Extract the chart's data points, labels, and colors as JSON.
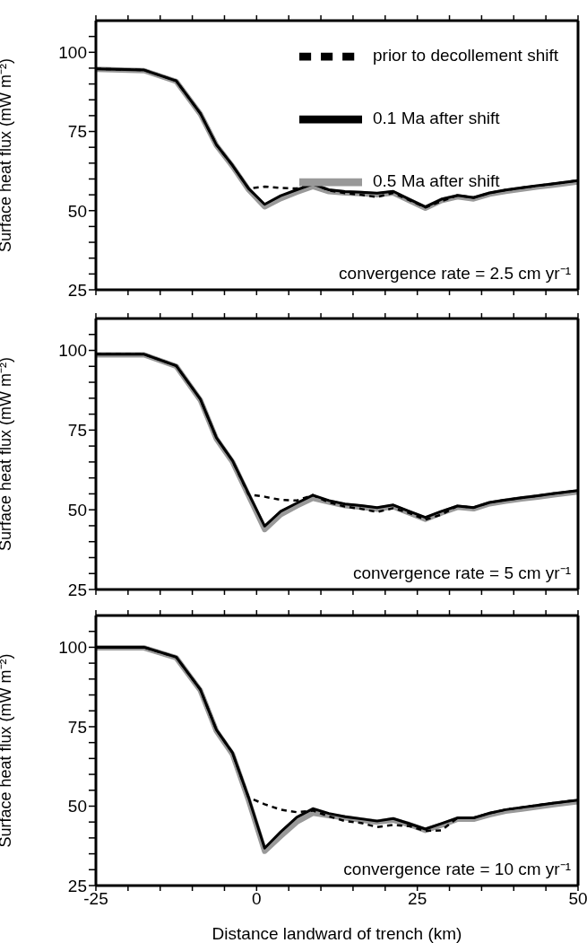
{
  "chart_data": [
    {
      "type": "line",
      "ylabel": "Surface heat flux (mW m⁻²)",
      "xlim": [
        -25,
        50
      ],
      "ylim": [
        25,
        110
      ],
      "xticks": [
        -25,
        {
          "value": -20,
          "label": null
        },
        {
          "value": -15,
          "label": null
        },
        {
          "value": -10,
          "label": null
        },
        {
          "value": -5,
          "label": null
        },
        0,
        {
          "value": 5,
          "label": null
        },
        {
          "value": 10,
          "label": null
        },
        {
          "value": 15,
          "label": null
        },
        {
          "value": 20,
          "label": null
        },
        25,
        {
          "value": 30,
          "label": null
        },
        {
          "value": 35,
          "label": null
        },
        {
          "value": 40,
          "label": null
        },
        {
          "value": 45,
          "label": null
        },
        50
      ],
      "yticks": [
        25,
        {
          "value": 30,
          "label": null
        },
        {
          "value": 35,
          "label": null
        },
        {
          "value": 40,
          "label": null
        },
        {
          "value": 45,
          "label": null
        },
        50,
        {
          "value": 55,
          "label": null
        },
        {
          "value": 60,
          "label": null
        },
        {
          "value": 65,
          "label": null
        },
        {
          "value": 70,
          "label": null
        },
        75,
        {
          "value": 80,
          "label": null
        },
        {
          "value": 85,
          "label": null
        },
        {
          "value": 90,
          "label": null
        },
        {
          "value": 95,
          "label": null
        },
        100,
        {
          "value": 105,
          "label": null
        }
      ],
      "tick_labels": "y",
      "legend": "top right",
      "annotations": [
        "convergence rate = 2.5 cm yr⁻¹"
      ],
      "x": [
        -25,
        -17.5,
        -12.5,
        -8.75,
        -6.25,
        -3.75,
        -1.25,
        1.25,
        3.75,
        6.25,
        8.75,
        11.25,
        13.75,
        16.25,
        18.75,
        21.25,
        23.75,
        26.25,
        28.75,
        31.25,
        33.75,
        36.25,
        38.75,
        41.25,
        43.75,
        46.25,
        50
      ],
      "series": [
        {
          "name": "prior to decollement shift",
          "color": "#000000",
          "line_style": "dashed",
          "values": [
            94.8,
            94.4,
            91.0,
            80.7,
            70.8,
            64.3,
            57.0,
            57.6,
            57.2,
            57.0,
            58.4,
            56.4,
            55.5,
            55.0,
            54.3,
            55.6,
            53.3,
            51.0,
            53.0,
            54.8,
            54.1,
            55.6,
            56.5,
            57.2,
            57.9,
            58.5,
            59.5
          ]
        },
        {
          "name": "0.1 Ma after shift",
          "color": "#000000",
          "values": [
            94.8,
            94.4,
            91.0,
            80.7,
            70.8,
            64.3,
            57.0,
            52.0,
            54.7,
            56.6,
            58.4,
            56.6,
            56.0,
            55.8,
            55.5,
            56.1,
            53.6,
            51.2,
            53.6,
            54.8,
            54.1,
            55.6,
            56.5,
            57.2,
            57.9,
            58.5,
            59.5
          ]
        },
        {
          "name": "0.5 Ma after shift",
          "color": "#999999",
          "values": [
            94.6,
            94.2,
            90.8,
            80.5,
            70.6,
            64.0,
            56.6,
            51.2,
            53.8,
            55.8,
            57.6,
            56.0,
            55.6,
            55.4,
            55.0,
            55.6,
            53.2,
            50.8,
            53.2,
            54.4,
            53.7,
            55.2,
            56.1,
            56.8,
            57.5,
            58.1,
            59.1
          ]
        }
      ]
    },
    {
      "type": "line",
      "ylabel": "Surface heat flux (mW m⁻²)",
      "xlim": [
        -25,
        50
      ],
      "ylim": [
        25,
        110
      ],
      "xticks": [
        -25,
        {
          "value": -20,
          "label": null
        },
        {
          "value": -15,
          "label": null
        },
        {
          "value": -10,
          "label": null
        },
        {
          "value": -5,
          "label": null
        },
        0,
        {
          "value": 5,
          "label": null
        },
        {
          "value": 10,
          "label": null
        },
        {
          "value": 15,
          "label": null
        },
        {
          "value": 20,
          "label": null
        },
        25,
        {
          "value": 30,
          "label": null
        },
        {
          "value": 35,
          "label": null
        },
        {
          "value": 40,
          "label": null
        },
        {
          "value": 45,
          "label": null
        },
        50
      ],
      "yticks": [
        25,
        {
          "value": 30,
          "label": null
        },
        {
          "value": 35,
          "label": null
        },
        {
          "value": 40,
          "label": null
        },
        {
          "value": 45,
          "label": null
        },
        50,
        {
          "value": 55,
          "label": null
        },
        {
          "value": 60,
          "label": null
        },
        {
          "value": 65,
          "label": null
        },
        {
          "value": 70,
          "label": null
        },
        75,
        {
          "value": 80,
          "label": null
        },
        {
          "value": 85,
          "label": null
        },
        {
          "value": 90,
          "label": null
        },
        {
          "value": 95,
          "label": null
        },
        100,
        {
          "value": 105,
          "label": null
        }
      ],
      "tick_labels": "y",
      "annotations": [
        "convergence rate = 5 cm yr⁻¹"
      ],
      "x": [
        -25,
        -17.5,
        -12.5,
        -8.75,
        -6.25,
        -3.75,
        -1.25,
        1.25,
        3.75,
        6.25,
        8.75,
        11.25,
        13.75,
        16.25,
        18.75,
        21.25,
        23.75,
        26.25,
        28.75,
        31.25,
        33.75,
        36.25,
        38.75,
        41.25,
        43.75,
        46.25,
        50
      ],
      "series": [
        {
          "color": "#000000",
          "line_style": "dashed",
          "values": [
            98.8,
            98.8,
            95.2,
            84.7,
            72.6,
            65.4,
            54.8,
            54.1,
            53.1,
            52.9,
            54.6,
            52.3,
            51.0,
            50.3,
            49.3,
            50.5,
            49.0,
            46.9,
            48.5,
            51.2,
            50.7,
            52.3,
            53.1,
            53.8,
            54.4,
            55.1,
            56.0
          ]
        },
        {
          "color": "#000000",
          "values": [
            98.8,
            98.8,
            95.2,
            84.7,
            72.6,
            65.4,
            55.1,
            44.9,
            49.5,
            52.1,
            54.6,
            52.9,
            51.8,
            51.3,
            50.7,
            51.5,
            49.5,
            47.6,
            49.5,
            51.2,
            50.7,
            52.3,
            53.1,
            53.8,
            54.4,
            55.1,
            56.0
          ]
        },
        {
          "color": "#999999",
          "values": [
            98.6,
            98.6,
            95.0,
            84.4,
            72.2,
            65.0,
            54.4,
            43.8,
            48.5,
            51.2,
            53.6,
            52.4,
            51.3,
            50.8,
            50.2,
            51.0,
            49.0,
            47.0,
            49.0,
            50.8,
            50.3,
            51.9,
            52.7,
            53.4,
            54.0,
            54.7,
            55.6
          ]
        }
      ]
    },
    {
      "type": "line",
      "ylabel": "Surface heat flux (mW m⁻²)",
      "xlabel": "Distance landward of trench (km)",
      "xlim": [
        -25,
        50
      ],
      "ylim": [
        25,
        110
      ],
      "xticks": [
        -25,
        {
          "value": -20,
          "label": null
        },
        {
          "value": -15,
          "label": null
        },
        {
          "value": -10,
          "label": null
        },
        {
          "value": -5,
          "label": null
        },
        0,
        {
          "value": 5,
          "label": null
        },
        {
          "value": 10,
          "label": null
        },
        {
          "value": 15,
          "label": null
        },
        {
          "value": 20,
          "label": null
        },
        25,
        {
          "value": 30,
          "label": null
        },
        {
          "value": 35,
          "label": null
        },
        {
          "value": 40,
          "label": null
        },
        {
          "value": 45,
          "label": null
        },
        50
      ],
      "yticks": [
        25,
        {
          "value": 30,
          "label": null
        },
        {
          "value": 35,
          "label": null
        },
        {
          "value": 40,
          "label": null
        },
        {
          "value": 45,
          "label": null
        },
        50,
        {
          "value": 55,
          "label": null
        },
        {
          "value": 60,
          "label": null
        },
        {
          "value": 65,
          "label": null
        },
        {
          "value": 70,
          "label": null
        },
        75,
        {
          "value": 80,
          "label": null
        },
        {
          "value": 85,
          "label": null
        },
        {
          "value": 90,
          "label": null
        },
        {
          "value": 95,
          "label": null
        },
        100,
        {
          "value": 105,
          "label": null
        }
      ],
      "annotations": [
        "convergence rate = 10 cm yr⁻¹"
      ],
      "x": [
        -25,
        -17.5,
        -12.5,
        -8.75,
        -6.25,
        -3.75,
        -1.25,
        1.25,
        3.75,
        6.25,
        8.75,
        11.25,
        13.75,
        16.25,
        18.75,
        21.25,
        23.75,
        26.25,
        28.75,
        31.25,
        33.75,
        36.25,
        38.75,
        41.25,
        43.75,
        46.25,
        50
      ],
      "series": [
        {
          "color": "#000000",
          "line_style": "dashed",
          "values": [
            100,
            100,
            96.9,
            86.7,
            74.0,
            66.8,
            52.7,
            50.6,
            48.9,
            48.1,
            48.6,
            46.8,
            45.3,
            44.7,
            43.4,
            44.1,
            43.7,
            42.2,
            42.4,
            46.3,
            46.3,
            47.8,
            48.9,
            49.6,
            50.3,
            51.0,
            51.9
          ]
        },
        {
          "color": "#000000",
          "values": [
            100,
            100,
            96.9,
            86.7,
            74.0,
            66.8,
            52.7,
            36.8,
            41.9,
            46.5,
            49.2,
            47.7,
            46.7,
            46.0,
            45.3,
            46.1,
            44.5,
            42.8,
            44.5,
            46.3,
            46.3,
            47.8,
            48.9,
            49.6,
            50.3,
            51.0,
            51.9
          ]
        },
        {
          "color": "#999999",
          "values": [
            99.8,
            99.8,
            96.7,
            86.4,
            73.6,
            66.3,
            51.8,
            35.8,
            40.5,
            45.0,
            47.8,
            47.0,
            46.3,
            45.6,
            45.0,
            45.6,
            44.2,
            42.4,
            44.0,
            45.9,
            45.9,
            47.3,
            48.4,
            49.1,
            49.8,
            50.5,
            51.4
          ]
        }
      ]
    }
  ]
}
